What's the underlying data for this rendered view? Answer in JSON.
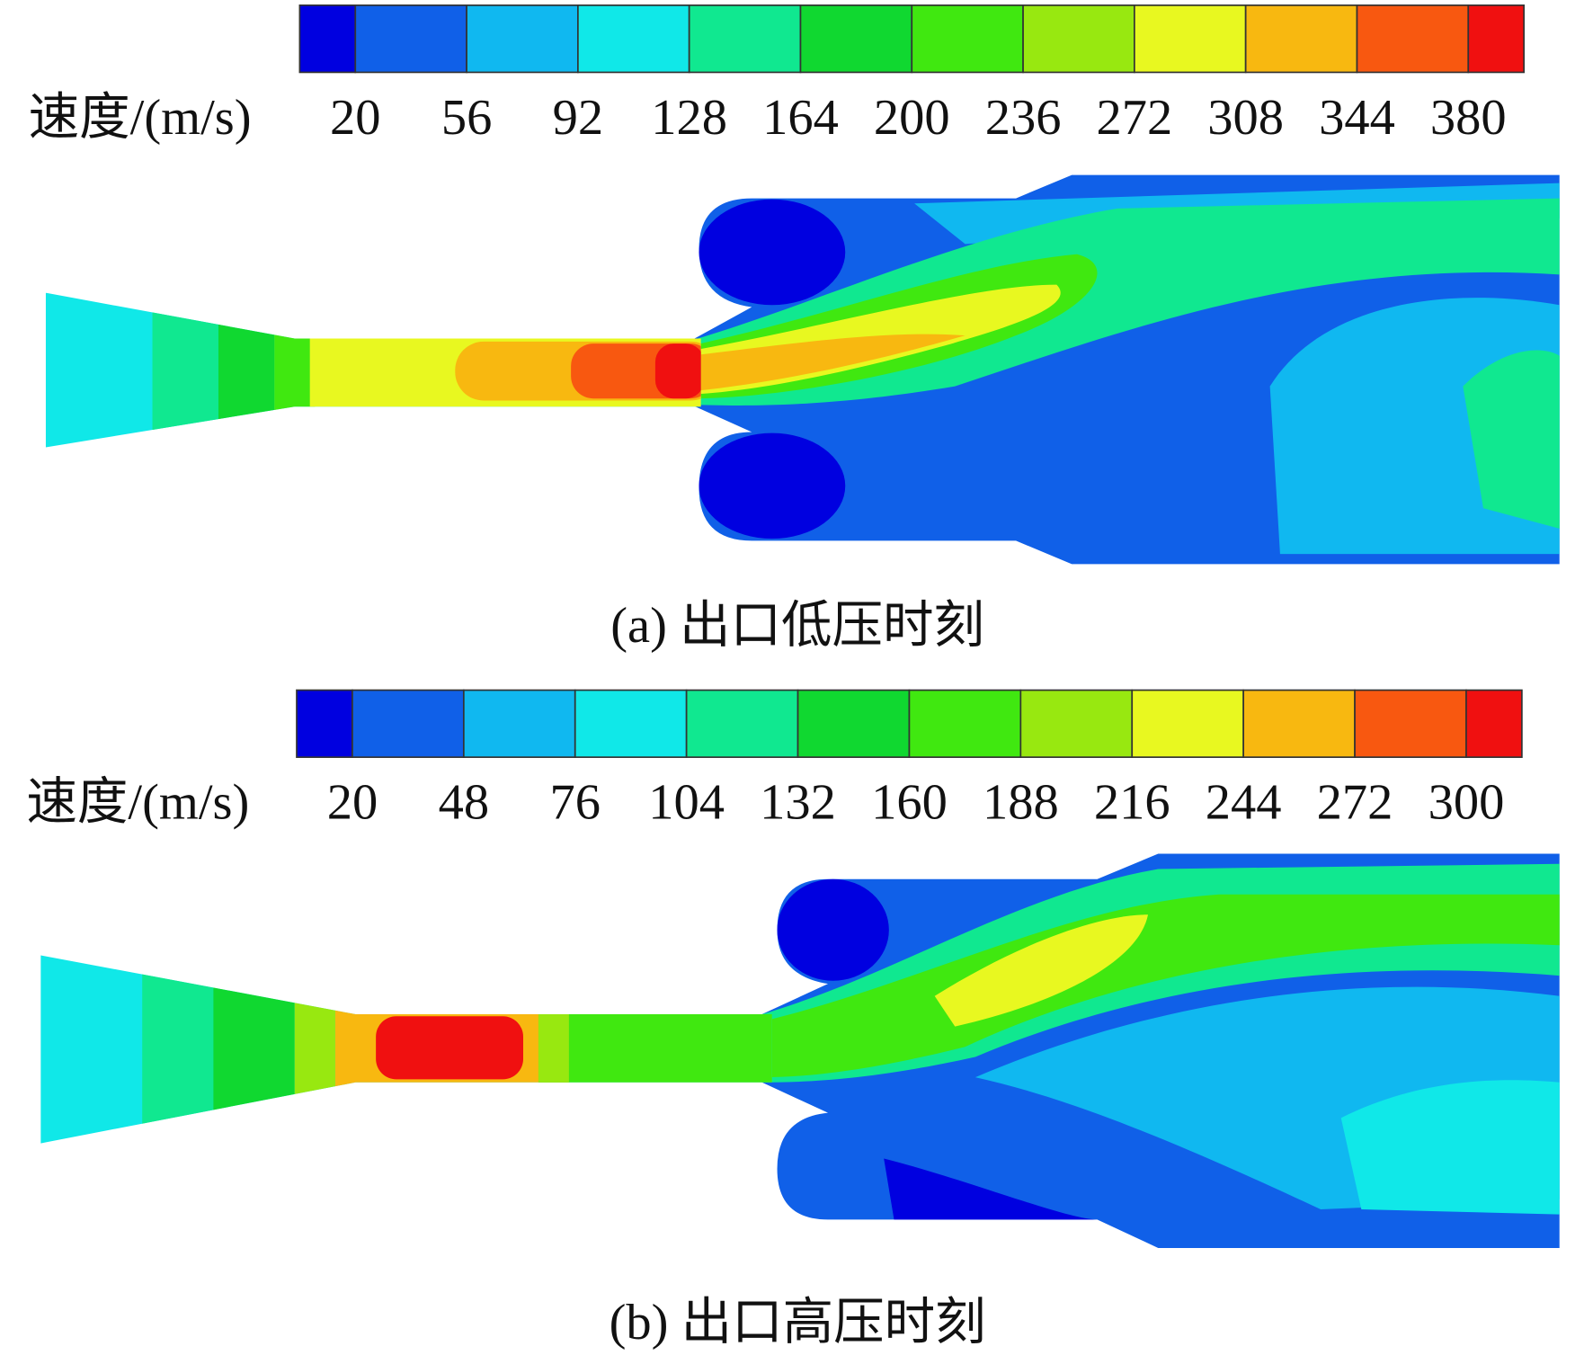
{
  "colorbar_colors": [
    "#0000e0",
    "#1060e8",
    "#10b8f0",
    "#10e8e8",
    "#10e890",
    "#10d830",
    "#40e810",
    "#98e810",
    "#e8f820",
    "#f8b810",
    "#f85810",
    "#f01010"
  ],
  "panels": [
    {
      "colorbar": {
        "label": "速度/(m/s)",
        "ticks": [
          20,
          56,
          92,
          128,
          164,
          200,
          236,
          272,
          308,
          344,
          380
        ]
      },
      "caption": "(a) 出口低压时刻"
    },
    {
      "colorbar": {
        "label": "速度/(m/s)",
        "ticks": [
          20,
          48,
          76,
          104,
          132,
          160,
          188,
          216,
          244,
          272,
          300
        ]
      },
      "caption": "(b) 出口高压时刻"
    }
  ]
}
